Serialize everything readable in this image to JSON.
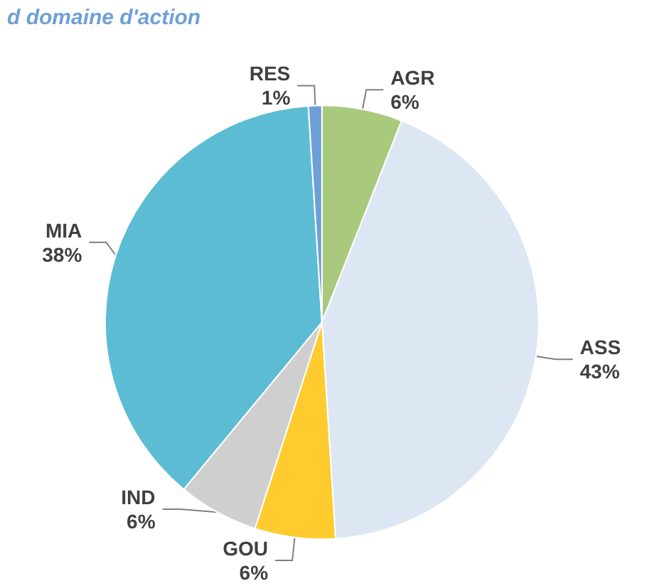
{
  "chart_data": {
    "type": "pie",
    "title": "d domaine d'action",
    "categories": [
      "AGR",
      "ASS",
      "GOU",
      "IND",
      "MIA",
      "RES"
    ],
    "values": [
      6,
      43,
      6,
      6,
      38,
      1
    ],
    "value_labels": [
      "6%",
      "43%",
      "6%",
      "6%",
      "38%",
      "1%"
    ],
    "colors": [
      "#a9c97c",
      "#dde7f3",
      "#ffcb2e",
      "#cfcfcf",
      "#5cbcd4",
      "#6f9fd8"
    ],
    "legend": false
  }
}
